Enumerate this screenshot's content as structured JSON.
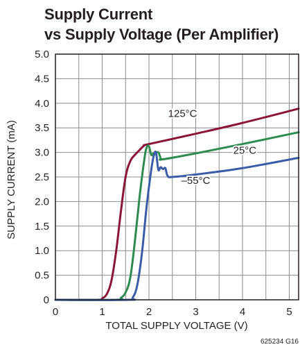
{
  "title_lines": [
    "Supply Current",
    "vs Supply Voltage (Per Amplifier)"
  ],
  "figure_code": "625234 G16",
  "colors": {
    "grid": "#8a8c8e",
    "frame": "#231f20",
    "s125": "#8b1538",
    "s25": "#2e8b4f",
    "s55": "#3a5ba8"
  },
  "chart_data": {
    "type": "line",
    "title": "Supply Current vs Supply Voltage (Per Amplifier)",
    "xlabel": "TOTAL SUPPLY VOLTAGE (V)",
    "ylabel": "SUPPLY CURRENT (mA)",
    "xlim": [
      0,
      5.2
    ],
    "ylim": [
      0,
      5.0
    ],
    "xticks": [
      0,
      1,
      2,
      3,
      4,
      5
    ],
    "xtick_labels": [
      "0",
      "1",
      "2",
      "3",
      "4",
      "5"
    ],
    "yticks": [
      0,
      0.5,
      1.0,
      1.5,
      2.0,
      2.5,
      3.0,
      3.5,
      4.0,
      4.5,
      5.0
    ],
    "ytick_labels": [
      "0",
      "0.5",
      "1.0",
      "1.5",
      "2.0",
      "2.5",
      "3.0",
      "3.5",
      "4.0",
      "4.5",
      "5.0"
    ],
    "grid": true,
    "series": [
      {
        "name": "125°C",
        "color": "#8b1538",
        "x": [
          0,
          0.9,
          1.0,
          1.1,
          1.2,
          1.3,
          1.4,
          1.5,
          1.6,
          1.7,
          1.8,
          1.9,
          2.0,
          3.0,
          4.0,
          5.2
        ],
        "y": [
          0,
          0,
          0.03,
          0.12,
          0.4,
          1.0,
          1.8,
          2.5,
          2.82,
          2.95,
          3.05,
          3.14,
          3.17,
          3.38,
          3.6,
          3.89
        ]
      },
      {
        "name": "25°C",
        "color": "#2e8b4f",
        "x": [
          0,
          1.3,
          1.4,
          1.5,
          1.6,
          1.7,
          1.8,
          1.9,
          1.95,
          2.0,
          2.05,
          2.1,
          2.2,
          2.25,
          2.3,
          3.0,
          4.0,
          5.2
        ],
        "y": [
          0,
          0,
          0.04,
          0.15,
          0.45,
          1.2,
          2.1,
          2.85,
          3.1,
          3.12,
          2.95,
          2.98,
          3.0,
          2.88,
          2.86,
          2.98,
          3.17,
          3.41
        ]
      },
      {
        "name": "–55°C",
        "color": "#3a5ba8",
        "x": [
          0,
          1.55,
          1.65,
          1.75,
          1.85,
          1.95,
          2.05,
          2.1,
          2.15,
          2.2,
          2.25,
          2.3,
          2.35,
          2.4,
          2.5,
          3.0,
          4.0,
          5.2
        ],
        "y": [
          0,
          0,
          0.04,
          0.3,
          0.95,
          1.9,
          2.65,
          2.92,
          3.0,
          2.65,
          2.7,
          2.66,
          2.68,
          2.52,
          2.5,
          2.55,
          2.68,
          2.89
        ]
      }
    ],
    "annotations": [
      {
        "text": "125°C",
        "x": 2.72,
        "y": 3.72
      },
      {
        "text": "25°C",
        "x": 4.05,
        "y": 2.97
      },
      {
        "text": "–55°C",
        "x": 3.0,
        "y": 2.36
      }
    ]
  }
}
